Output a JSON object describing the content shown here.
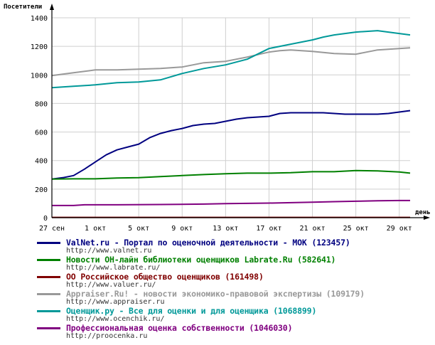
{
  "chart_data": {
    "type": "line",
    "ylabel": "Посетители",
    "xlabel": "день",
    "ylim": [
      0,
      1400
    ],
    "yticks": [
      0,
      200,
      400,
      600,
      800,
      1000,
      1200,
      1400
    ],
    "xticks": [
      {
        "day": 0,
        "label": "27 сен"
      },
      {
        "day": 4,
        "label": "1 окт"
      },
      {
        "day": 8,
        "label": "5 окт"
      },
      {
        "day": 12,
        "label": "9 окт"
      },
      {
        "day": 16,
        "label": "13 окт"
      },
      {
        "day": 20,
        "label": "17 окт"
      },
      {
        "day": 24,
        "label": "21 окт"
      },
      {
        "day": 28,
        "label": "25 окт"
      },
      {
        "day": 32,
        "label": "29 окт"
      }
    ],
    "grid": true,
    "legend_position": "bottom",
    "series": [
      {
        "name": "ValNet.ru - Портал по оценочной деятельности - МОК  (123457)",
        "url": "http://www.valnet.ru",
        "color": "#000080",
        "x": [
          0,
          1,
          2,
          3,
          4,
          5,
          6,
          7,
          8,
          9,
          10,
          11,
          12,
          13,
          14,
          15,
          16,
          17,
          18,
          19,
          20,
          21,
          22,
          23,
          24,
          25,
          26,
          27,
          28,
          29,
          30,
          31,
          32,
          33
        ],
        "values": [
          270,
          280,
          295,
          340,
          390,
          440,
          475,
          495,
          515,
          560,
          590,
          610,
          625,
          645,
          655,
          660,
          675,
          690,
          700,
          705,
          710,
          730,
          735,
          735,
          735,
          735,
          730,
          725,
          725,
          725,
          725,
          730,
          740,
          750
        ]
      },
      {
        "name": "Новости ОН-лайн библиотеки оценщиков Labrate.Ru  (582641)",
        "url": "http://www.labrate.ru/",
        "color": "#008000",
        "x": [
          0,
          2,
          4,
          6,
          8,
          10,
          12,
          14,
          16,
          18,
          20,
          22,
          24,
          26,
          28,
          30,
          32,
          33
        ],
        "values": [
          270,
          272,
          272,
          278,
          280,
          288,
          295,
          302,
          308,
          312,
          312,
          315,
          322,
          322,
          330,
          328,
          320,
          312
        ]
      },
      {
        "name": "ОО Российское общество оценщиков  (161498)",
        "url": "http://www.valuer.ru/",
        "color": "#800000",
        "x": [
          0,
          33
        ],
        "values": [
          2,
          2
        ]
      },
      {
        "name": "Appraiser.Ru! - новости экономико-правовой экспертизы  (109179)",
        "url": "http://www.appraiser.ru",
        "color": "#999999",
        "x": [
          0,
          2,
          4,
          6,
          8,
          10,
          12,
          14,
          16,
          18,
          20,
          21,
          22,
          24,
          26,
          28,
          29,
          30,
          32,
          33
        ],
        "values": [
          995,
          1015,
          1035,
          1035,
          1040,
          1045,
          1055,
          1085,
          1095,
          1125,
          1160,
          1170,
          1175,
          1165,
          1150,
          1145,
          1160,
          1175,
          1185,
          1190
        ]
      },
      {
        "name": "Оценщик.ру - Все для оценки и для оценщика  (1068899)",
        "url": "http://www.ocenchik.ru/",
        "color": "#009999",
        "x": [
          0,
          2,
          4,
          6,
          8,
          10,
          12,
          14,
          16,
          18,
          20,
          22,
          24,
          25,
          26,
          28,
          29,
          30,
          32,
          33
        ],
        "values": [
          910,
          920,
          930,
          945,
          950,
          965,
          1010,
          1045,
          1070,
          1110,
          1185,
          1215,
          1245,
          1265,
          1280,
          1300,
          1305,
          1310,
          1290,
          1280
        ]
      },
      {
        "name": "Профессиональная оценка собственности  (1046030)",
        "url": "http://proocenka.ru",
        "color": "#800080",
        "x": [
          0,
          2,
          3,
          6,
          10,
          14,
          16,
          20,
          24,
          26,
          28,
          30,
          32,
          33
        ],
        "values": [
          85,
          85,
          90,
          90,
          92,
          95,
          98,
          102,
          108,
          112,
          115,
          118,
          120,
          120
        ]
      }
    ]
  }
}
